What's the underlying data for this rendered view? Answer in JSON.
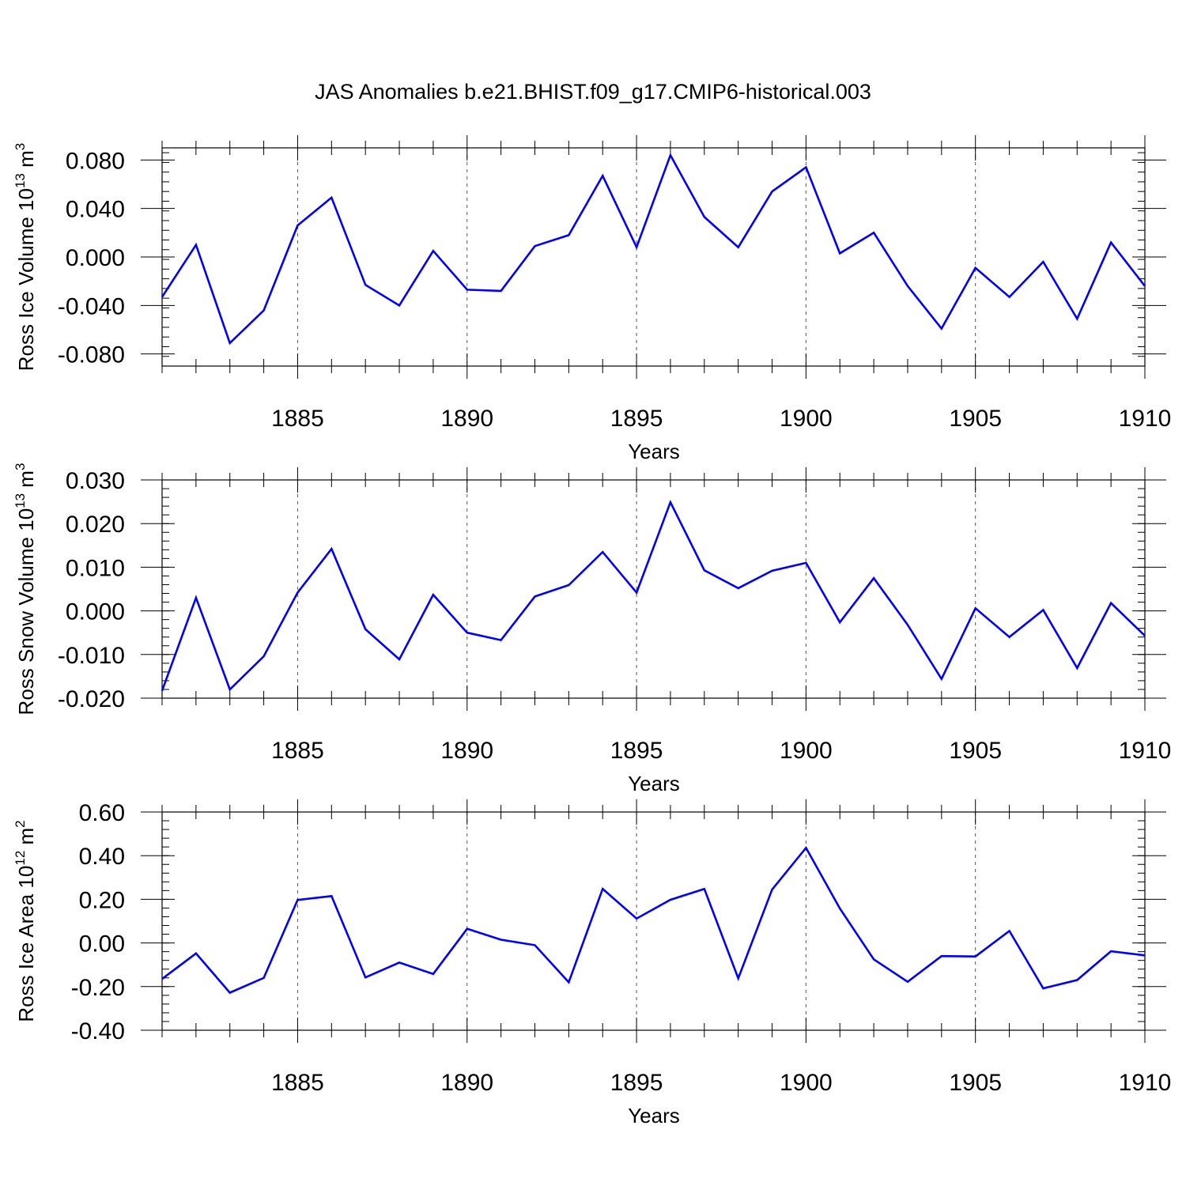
{
  "title": "JAS Anomalies b.e21.BHIST.f09_g17.CMIP6-historical.003",
  "chart_data": [
    {
      "type": "line",
      "title": "",
      "ylabel": "Ross Ice Volume 10",
      "ylabel_exp": "13",
      "ylabel_unit": "m",
      "ylabel_unit_exp": "3",
      "xlabel": "Years",
      "xlim": [
        1881,
        1910
      ],
      "ylim": [
        -0.09,
        0.09
      ],
      "yticks": [
        -0.08,
        -0.04,
        0.0,
        0.04,
        0.08
      ],
      "yticklabels": [
        "-0.080",
        "-0.040",
        "0.000",
        "0.040",
        "0.080"
      ],
      "xticks": [
        1885,
        1890,
        1895,
        1900,
        1905,
        1910
      ],
      "xticklabels": [
        "1885",
        "1890",
        "1895",
        "1900",
        "1905",
        "1910"
      ],
      "grid": "vertical dashed at major x ticks",
      "line_color": "#0000ff",
      "x": [
        1881,
        1882,
        1883,
        1884,
        1885,
        1886,
        1887,
        1888,
        1889,
        1890,
        1891,
        1892,
        1893,
        1894,
        1895,
        1896,
        1897,
        1898,
        1899,
        1900,
        1901,
        1902,
        1903,
        1904,
        1905,
        1906,
        1907,
        1908,
        1909,
        1910
      ],
      "y": [
        -0.033,
        0.01,
        -0.071,
        -0.044,
        0.026,
        0.049,
        -0.023,
        -0.04,
        0.005,
        -0.027,
        -0.028,
        0.009,
        0.018,
        0.067,
        0.008,
        0.084,
        0.033,
        0.008,
        0.054,
        0.074,
        0.003,
        0.02,
        -0.024,
        -0.059,
        -0.009,
        -0.033,
        -0.004,
        -0.051,
        0.012,
        -0.024
      ]
    },
    {
      "type": "line",
      "title": "",
      "ylabel": "Ross Snow Volume 10",
      "ylabel_exp": "13",
      "ylabel_unit": "m",
      "ylabel_unit_exp": "3",
      "xlabel": "Years",
      "xlim": [
        1881,
        1910
      ],
      "ylim": [
        -0.02,
        0.03
      ],
      "yticks": [
        -0.02,
        -0.01,
        0.0,
        0.01,
        0.02,
        0.03
      ],
      "yticklabels": [
        "-0.020",
        "-0.010",
        "0.000",
        "0.010",
        "0.020",
        "0.030"
      ],
      "xticks": [
        1885,
        1890,
        1895,
        1900,
        1905,
        1910
      ],
      "xticklabels": [
        "1885",
        "1890",
        "1895",
        "1900",
        "1905",
        "1910"
      ],
      "grid": "vertical dashed at major x ticks",
      "line_color": "#0000ff",
      "x": [
        1881,
        1882,
        1883,
        1884,
        1885,
        1886,
        1887,
        1888,
        1889,
        1890,
        1891,
        1892,
        1893,
        1894,
        1895,
        1896,
        1897,
        1898,
        1899,
        1900,
        1901,
        1902,
        1903,
        1904,
        1905,
        1906,
        1907,
        1908,
        1909,
        1910
      ],
      "y": [
        -0.0183,
        0.003,
        -0.018,
        -0.0104,
        0.0042,
        0.0142,
        -0.0042,
        -0.0111,
        0.0037,
        -0.005,
        -0.0067,
        0.0033,
        0.0059,
        0.0135,
        0.0042,
        0.0249,
        0.0093,
        0.0052,
        0.0092,
        0.011,
        -0.0026,
        0.0075,
        -0.0032,
        -0.0156,
        0.0006,
        -0.006,
        0.0002,
        -0.0131,
        0.0018,
        -0.0057
      ]
    },
    {
      "type": "line",
      "title": "",
      "ylabel": "Ross Ice Area 10",
      "ylabel_exp": "12",
      "ylabel_unit": "m",
      "ylabel_unit_exp": "2",
      "xlabel": "Years",
      "xlim": [
        1881,
        1910
      ],
      "ylim": [
        -0.4,
        0.6
      ],
      "yticks": [
        -0.4,
        -0.2,
        0.0,
        0.2,
        0.4,
        0.6
      ],
      "yticklabels": [
        "-0.40",
        "-0.20",
        "0.00",
        "0.20",
        "0.40",
        "0.60"
      ],
      "xticks": [
        1885,
        1890,
        1895,
        1900,
        1905,
        1910
      ],
      "xticklabels": [
        "1885",
        "1890",
        "1895",
        "1900",
        "1905",
        "1910"
      ],
      "grid": "vertical dashed at major x ticks",
      "line_color": "#0000ff",
      "x": [
        1881,
        1882,
        1883,
        1884,
        1885,
        1886,
        1887,
        1888,
        1889,
        1890,
        1891,
        1892,
        1893,
        1894,
        1895,
        1896,
        1897,
        1898,
        1899,
        1900,
        1901,
        1902,
        1903,
        1904,
        1905,
        1906,
        1907,
        1908,
        1909,
        1910
      ],
      "y": [
        -0.165,
        -0.048,
        -0.228,
        -0.16,
        0.197,
        0.215,
        -0.158,
        -0.09,
        -0.142,
        0.065,
        0.015,
        -0.01,
        -0.18,
        0.248,
        0.112,
        0.198,
        0.248,
        -0.162,
        0.245,
        0.436,
        0.158,
        -0.075,
        -0.178,
        -0.06,
        -0.062,
        0.055,
        -0.208,
        -0.17,
        -0.038,
        -0.057
      ]
    }
  ]
}
